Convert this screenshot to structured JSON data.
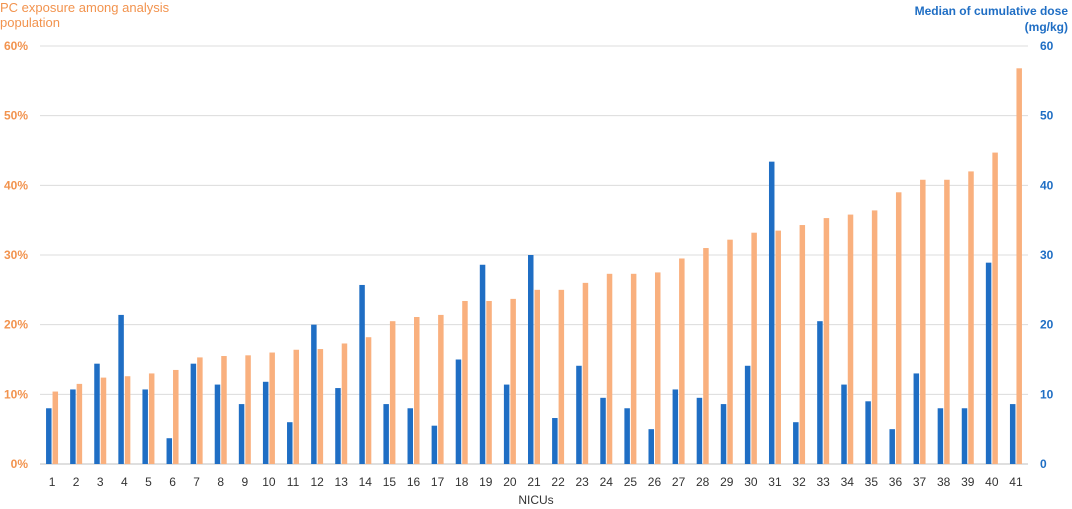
{
  "chart_data": {
    "type": "bar",
    "xlabel": "NICUs",
    "ylabel_left": "PC exposure among analysis population",
    "ylabel_right": "Median of cumulative dose (mg/kg)",
    "ylim_left": [
      0,
      60
    ],
    "ylim_right": [
      0,
      60
    ],
    "yticks_left": [
      "0%",
      "10%",
      "20%",
      "30%",
      "40%",
      "50%",
      "60%"
    ],
    "yticks_right": [
      "0",
      "10",
      "20",
      "30",
      "40",
      "50",
      "60"
    ],
    "grid": true,
    "categories": [
      "1",
      "2",
      "3",
      "4",
      "5",
      "6",
      "7",
      "8",
      "9",
      "10",
      "11",
      "12",
      "13",
      "14",
      "15",
      "16",
      "17",
      "18",
      "19",
      "20",
      "21",
      "22",
      "23",
      "24",
      "25",
      "26",
      "27",
      "28",
      "29",
      "30",
      "31",
      "32",
      "33",
      "34",
      "35",
      "36",
      "37",
      "38",
      "39",
      "40",
      "41"
    ],
    "series": [
      {
        "axis": "right",
        "color": "#1F6EC4",
        "values": [
          8.0,
          10.7,
          14.4,
          21.4,
          10.7,
          3.7,
          14.4,
          11.4,
          8.6,
          11.8,
          6.0,
          20.0,
          10.9,
          25.7,
          8.6,
          8.0,
          5.5,
          15.0,
          28.6,
          11.4,
          30.0,
          6.6,
          14.1,
          9.5,
          8.0,
          5.0,
          10.7,
          9.5,
          8.6,
          14.1,
          43.4,
          6.0,
          20.5,
          11.4,
          9.0,
          5.0,
          13.0,
          8.0,
          8.0,
          28.9,
          8.6
        ]
      },
      {
        "axis": "left",
        "color": "#F9B07E",
        "values": [
          10.4,
          11.5,
          12.4,
          12.6,
          13.0,
          13.5,
          15.3,
          15.5,
          15.6,
          16.0,
          16.4,
          16.5,
          17.3,
          18.2,
          20.5,
          21.1,
          21.4,
          23.4,
          23.4,
          23.7,
          25.0,
          25.0,
          26.0,
          27.3,
          27.3,
          27.5,
          29.5,
          31.0,
          32.2,
          33.2,
          33.5,
          34.3,
          35.3,
          35.8,
          36.4,
          39.0,
          40.8,
          40.8,
          42.0,
          44.7,
          56.8
        ]
      }
    ]
  }
}
